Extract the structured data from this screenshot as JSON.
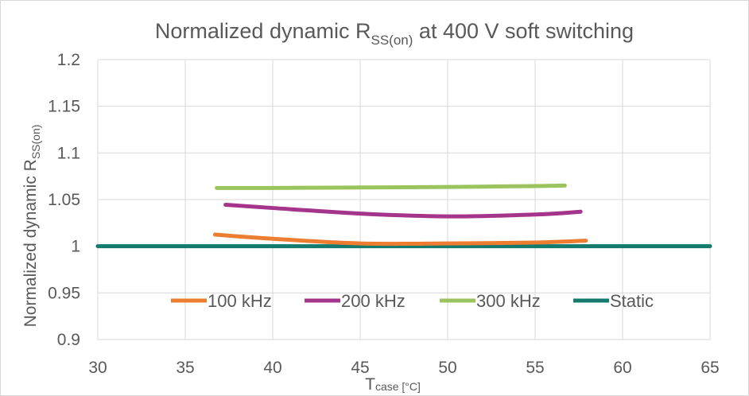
{
  "chart_data": {
    "type": "line",
    "title": {
      "main": "Normalized dynamic R",
      "sub": "SS(on)",
      "rest": " at 400 V soft switching"
    },
    "ylabel": {
      "main": "Normalized dynamic R",
      "sub": "SS(on)"
    },
    "xlabel": {
      "main": "T",
      "sub": "case [°C]"
    },
    "xlim": [
      30,
      65
    ],
    "ylim": [
      0.9,
      1.2
    ],
    "x_ticks": [
      30,
      35,
      40,
      45,
      50,
      55,
      60,
      65
    ],
    "y_ticks": [
      0.9,
      0.95,
      1,
      1.05,
      1.1,
      1.15,
      1.2
    ],
    "x_tick_labels": [
      "30",
      "35",
      "40",
      "45",
      "50",
      "55",
      "60",
      "65"
    ],
    "y_tick_labels": [
      "0.9",
      "0.95",
      "1",
      "1.05",
      "1.1",
      "1.15",
      "1.2"
    ],
    "grid": true,
    "legend_position": "inside-bottom",
    "series": [
      {
        "name": "100 kHz",
        "color": "#ed7d31",
        "x": [
          36.7,
          40,
          45,
          50,
          55,
          57.9
        ],
        "y": [
          1.0125,
          1.008,
          1.003,
          1.003,
          1.004,
          1.006
        ]
      },
      {
        "name": "200 kHz",
        "color": "#a5348b",
        "x": [
          37.3,
          40,
          45,
          50,
          55,
          57.6
        ],
        "y": [
          1.0445,
          1.041,
          1.035,
          1.032,
          1.034,
          1.037
        ]
      },
      {
        "name": "300 kHz",
        "color": "#9bc45e",
        "x": [
          36.8,
          40,
          45,
          50,
          55,
          56.7
        ],
        "y": [
          1.0625,
          1.0625,
          1.063,
          1.0635,
          1.0645,
          1.065
        ]
      },
      {
        "name": "Static",
        "color": "#127b6e",
        "x": [
          30,
          65
        ],
        "y": [
          1,
          1
        ]
      }
    ]
  }
}
